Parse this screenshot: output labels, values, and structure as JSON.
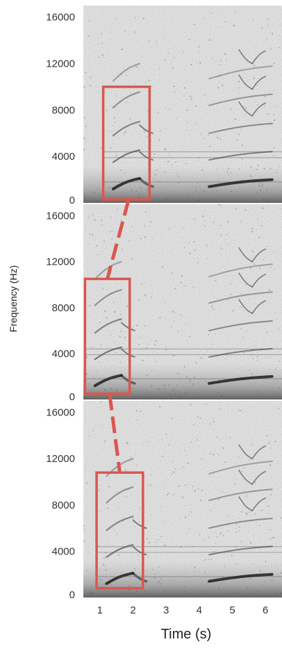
{
  "colors": {
    "box": "#d9574f",
    "connector": "#d9574f",
    "background": "#ffffff",
    "ink": "#1e1e1e",
    "text": "#333333"
  },
  "chart_data": {
    "type": "heatmap",
    "description_type": "spectrogram",
    "xlabel": "Time (s)",
    "ylabel": "Frequency (Hz)",
    "x_ticks": [
      "1",
      "2",
      "3",
      "4",
      "5",
      "6"
    ],
    "y_ticks": [
      "0",
      "4000",
      "8000",
      "12000",
      "16000"
    ],
    "xlim": [
      0.5,
      6.5
    ],
    "ylim": [
      0,
      17000
    ],
    "panels": [
      {
        "highlight": {
          "t0": 1.1,
          "t1": 2.5,
          "f0": 300,
          "f1": 10000
        }
      },
      {
        "highlight": {
          "t0": 0.55,
          "t1": 1.9,
          "f0": 500,
          "f1": 10500
        }
      },
      {
        "highlight": {
          "t0": 0.9,
          "t1": 2.3,
          "f0": 800,
          "f1": 10800
        }
      }
    ]
  }
}
